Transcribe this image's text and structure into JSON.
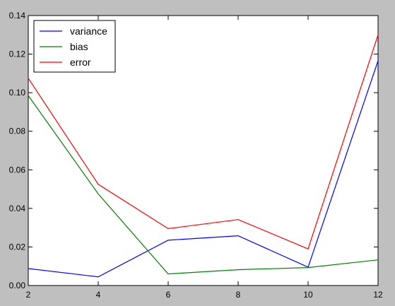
{
  "chart_data": {
    "type": "line",
    "x": [
      2,
      4,
      6,
      8,
      10,
      12
    ],
    "xlim": [
      2,
      12
    ],
    "ylim": [
      0,
      0.14
    ],
    "xticks": [
      "2",
      "4",
      "6",
      "8",
      "10",
      "12"
    ],
    "yticks": [
      "0.00",
      "0.02",
      "0.04",
      "0.06",
      "0.08",
      "0.10",
      "0.12",
      "0.14"
    ],
    "grid": false,
    "legend_position": "top-left",
    "series": [
      {
        "name": "variance",
        "color": "#0000ff",
        "values": [
          0.0088,
          0.0045,
          0.0235,
          0.0258,
          0.0095,
          0.1165
        ]
      },
      {
        "name": "bias",
        "color": "#008000",
        "values": [
          0.0985,
          0.0475,
          0.006,
          0.0082,
          0.0093,
          0.0133
        ]
      },
      {
        "name": "error",
        "color": "#ff0000",
        "values": [
          0.1075,
          0.0525,
          0.0295,
          0.0342,
          0.019,
          0.13
        ]
      }
    ]
  }
}
